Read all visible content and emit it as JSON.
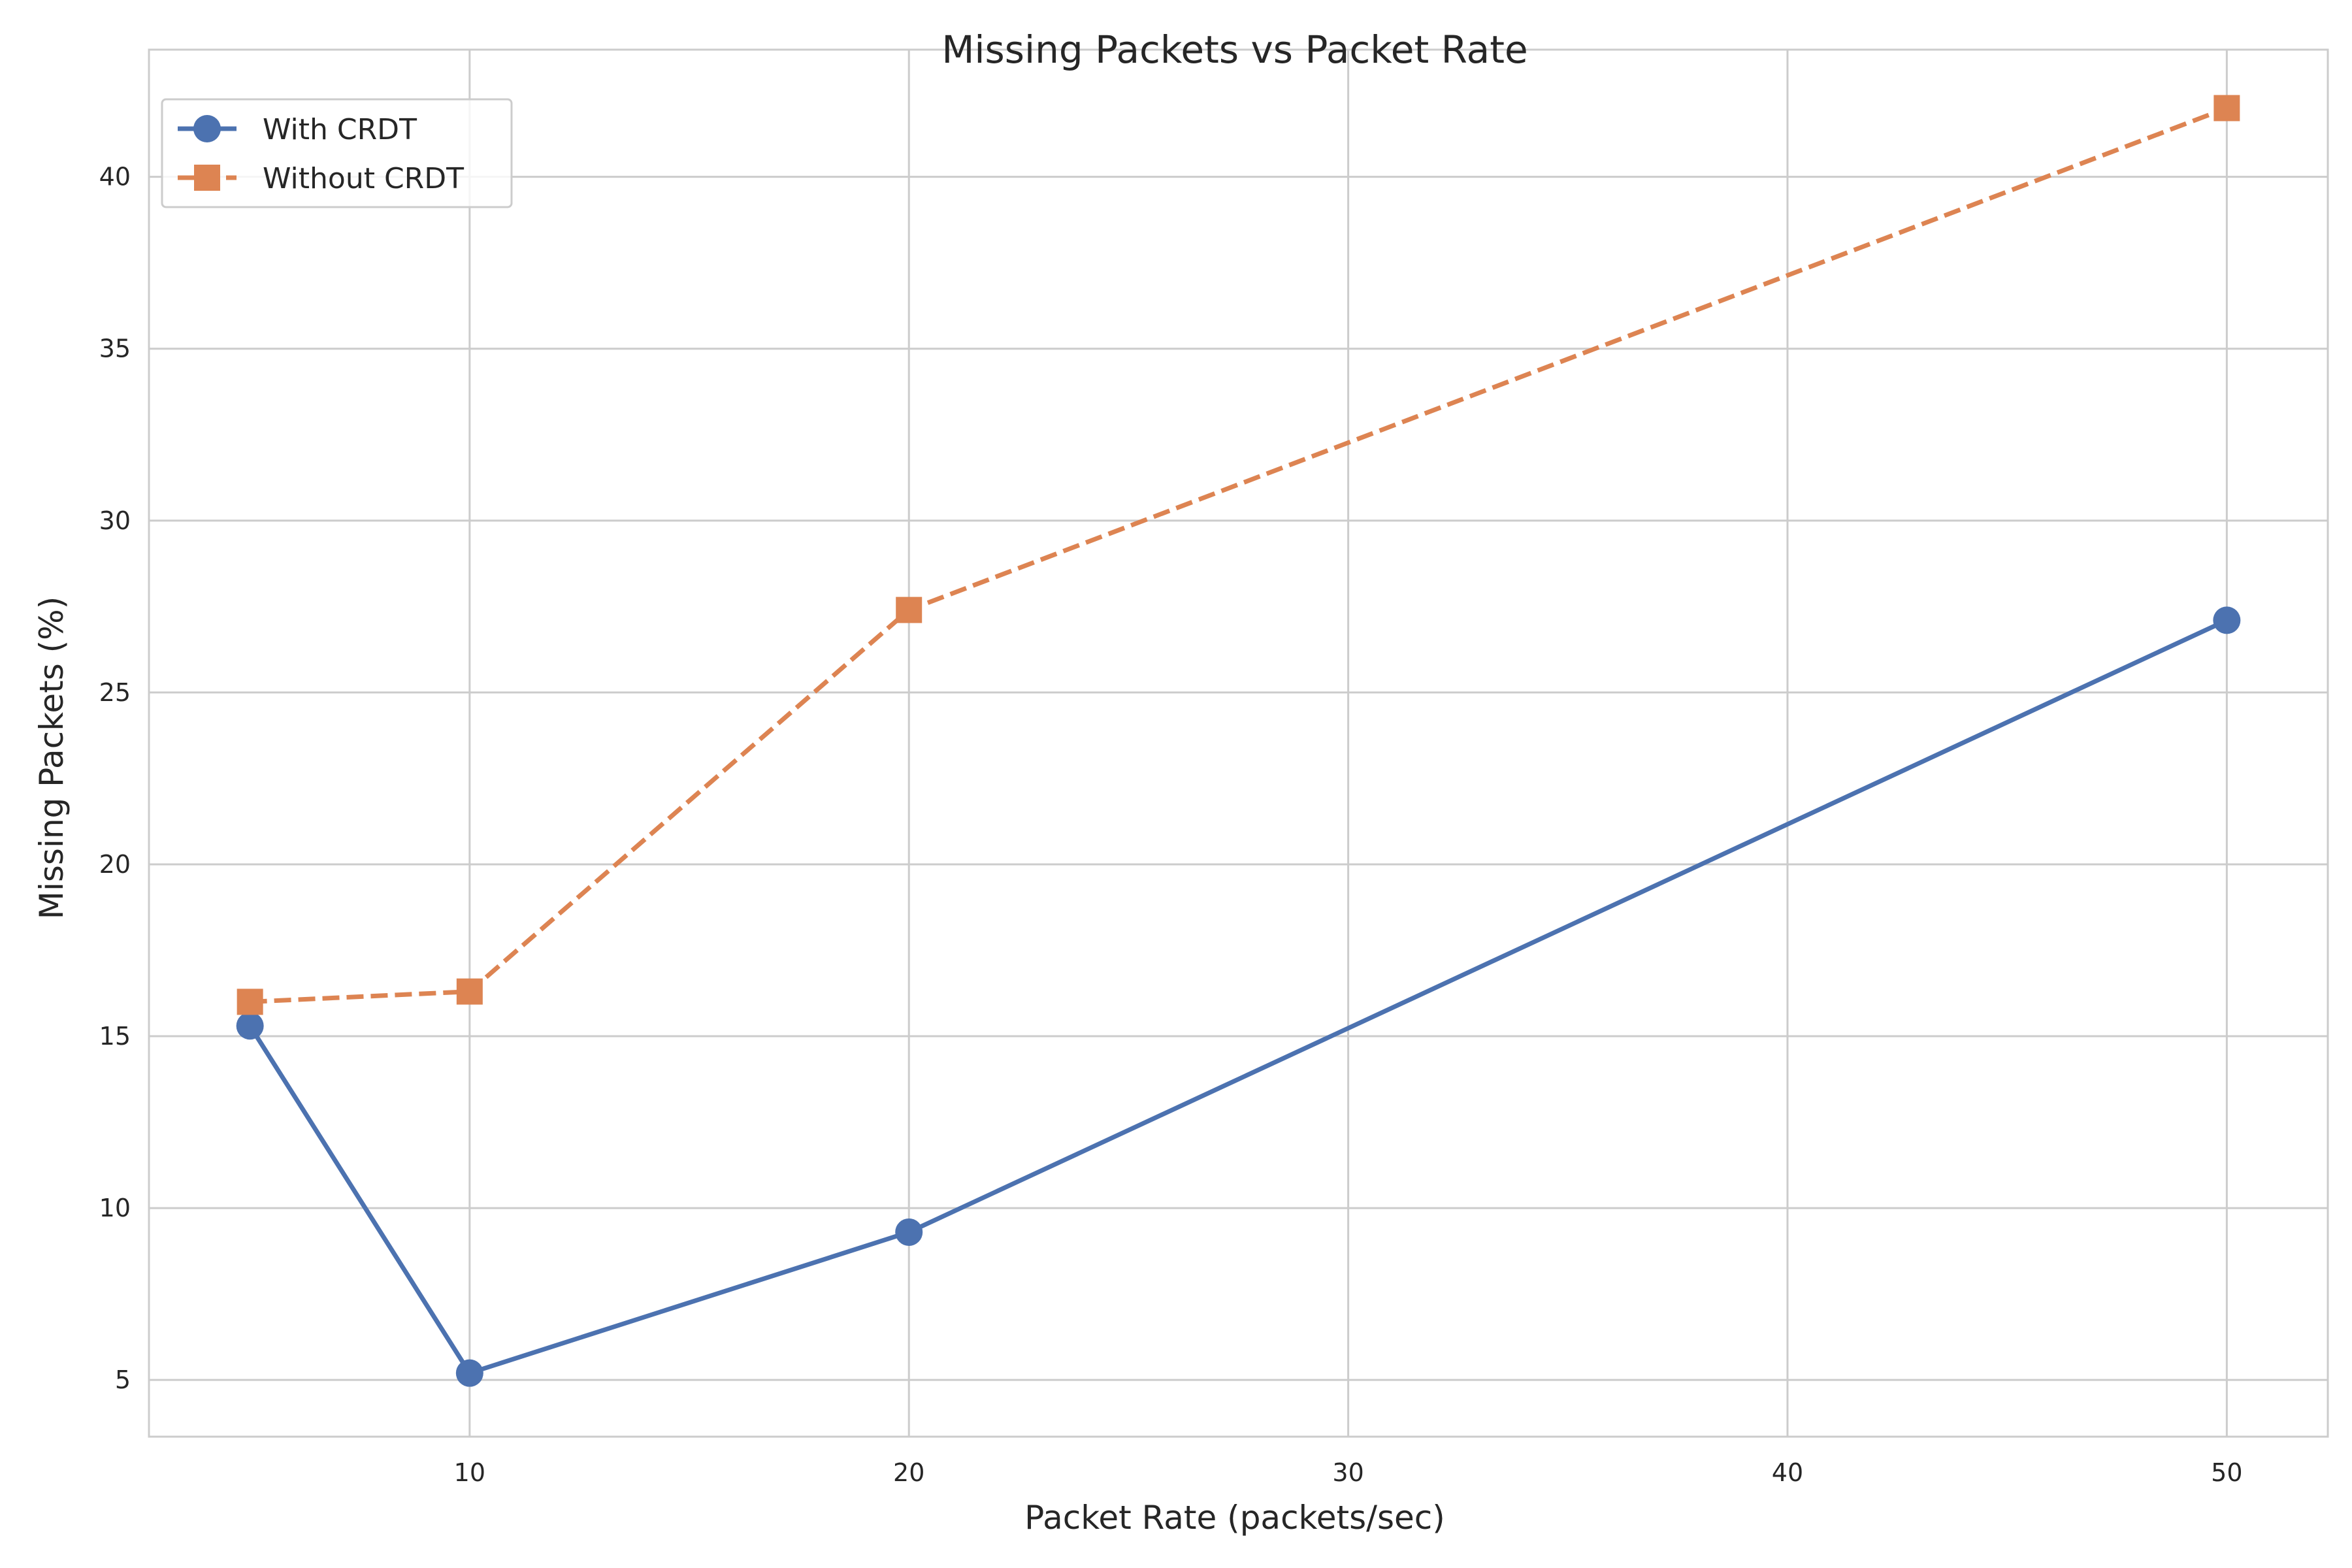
{
  "chart_data": {
    "type": "line",
    "title": "Missing Packets vs Packet Rate",
    "xlabel": "Packet Rate (packets/sec)",
    "ylabel": "Missing Packets (%)",
    "xlim": [
      2.7,
      52.3
    ],
    "ylim": [
      3.35,
      43.7
    ],
    "xticks": [
      10,
      20,
      30,
      40,
      50
    ],
    "yticks": [
      5,
      10,
      15,
      20,
      25,
      30,
      35,
      40
    ],
    "grid": true,
    "legend_position": "top-left",
    "x": [
      5,
      10,
      20,
      50
    ],
    "series": [
      {
        "name": "With CRDT",
        "values": [
          15.3,
          5.2,
          9.3,
          27.1
        ],
        "color": "#4c72b0",
        "marker": "circle",
        "linestyle": "solid"
      },
      {
        "name": "Without CRDT",
        "values": [
          16.0,
          16.3,
          27.4,
          42.0
        ],
        "color": "#dd8452",
        "marker": "square",
        "linestyle": "dashed"
      }
    ]
  }
}
